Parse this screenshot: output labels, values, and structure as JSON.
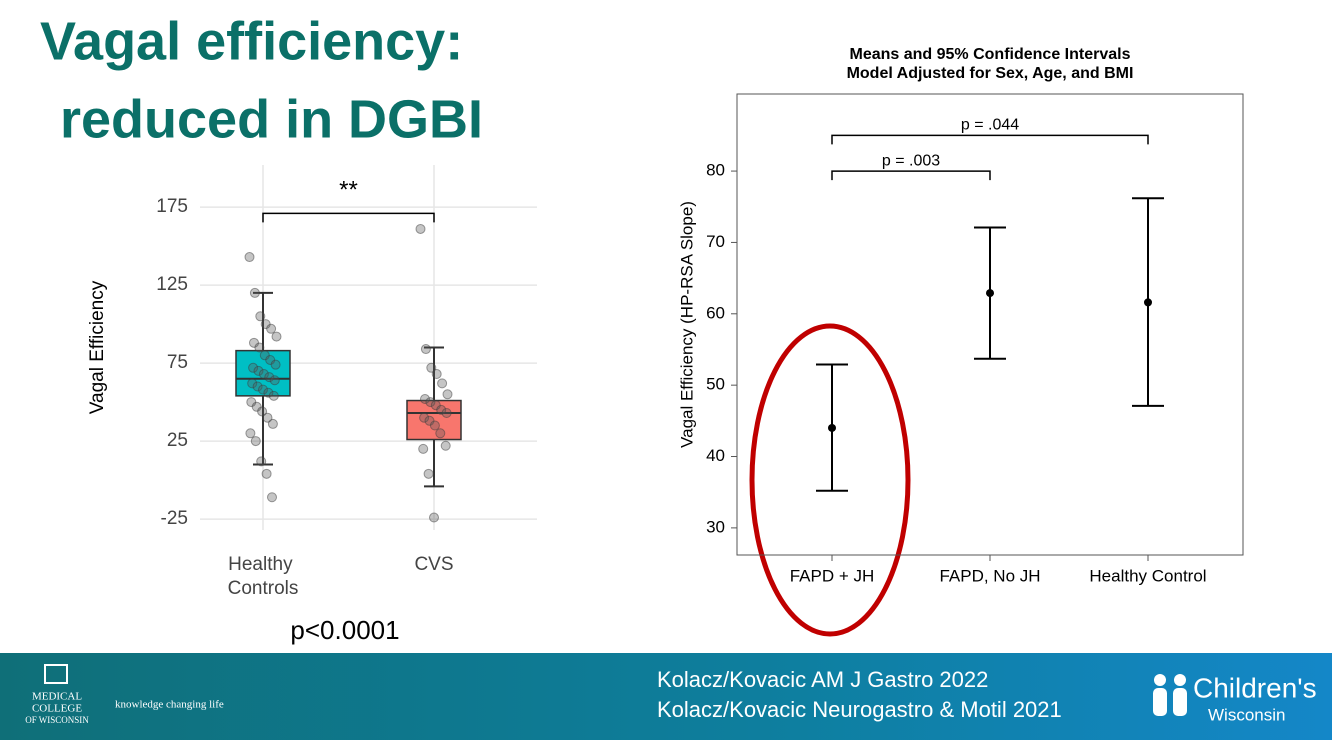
{
  "slide": {
    "title": [
      "Vagal efficiency:",
      "reduced in DGBI"
    ],
    "note": "p<0.0001"
  },
  "chart_data": [
    {
      "type": "box",
      "y_label": "Vagal Efficiency",
      "categories": [
        "Healthy Controls",
        "CVS"
      ],
      "colors": [
        "#00bfc4",
        "#f8766d"
      ],
      "boxes": [
        {
          "whisker_low": 10,
          "q1": 54,
          "median": 65,
          "q3": 83,
          "whisker_high": 120,
          "points": [
            143,
            120,
            105,
            100,
            97,
            92,
            88,
            85,
            80,
            77,
            74,
            72,
            70,
            68,
            66,
            64,
            62,
            60,
            58,
            56,
            54,
            50,
            47,
            44,
            40,
            36,
            30,
            25,
            12,
            4,
            -11
          ]
        },
        {
          "whisker_low": -4,
          "q1": 26,
          "median": 43,
          "q3": 51,
          "whisker_high": 85,
          "points": [
            161,
            84,
            72,
            68,
            62,
            55,
            52,
            50,
            48,
            45,
            43,
            40,
            38,
            35,
            30,
            22,
            20,
            4,
            -24
          ]
        }
      ],
      "ylim": [
        -32,
        202
      ],
      "yticks": [
        -25,
        25,
        75,
        125,
        175
      ],
      "grid": true,
      "brackets": [
        {
          "between": [
            "Healthy Controls",
            "CVS"
          ],
          "y": 171,
          "label": "**"
        }
      ]
    },
    {
      "type": "errorbar",
      "title": [
        "Means and 95% Confidence Intervals",
        "Model Adjusted for Sex, Age, and BMI"
      ],
      "y_label": "Vagal Efficiency (HP-RSA Slope)",
      "categories": [
        "FAPD + JH",
        "FAPD, No JH",
        "Healthy Control"
      ],
      "values": [
        44.0,
        62.9,
        61.6
      ],
      "lower": [
        35.2,
        53.7,
        47.1
      ],
      "upper": [
        52.9,
        72.1,
        76.2
      ],
      "color": "#000000",
      "ylim": [
        26.2,
        90.8
      ],
      "yticks": [
        30,
        40,
        50,
        60,
        70,
        80
      ],
      "grid": false,
      "brackets": [
        {
          "between": [
            "FAPD + JH",
            "FAPD, No JH"
          ],
          "y": 80,
          "label": "p = .003"
        },
        {
          "between": [
            "FAPD + JH",
            "Healthy Control"
          ],
          "y": 85,
          "label": "p = .044"
        }
      ]
    }
  ],
  "footer": {
    "references": [
      "Kolacz/Kovacic AM J Gastro 2022",
      "Kolacz/Kovacic Neurogastro & Motil 2021"
    ],
    "left_logo": [
      "MEDICAL",
      "COLLEGE",
      "OF WISCONSIN"
    ],
    "tagline": "knowledge changing life",
    "right_logo": [
      "Children's",
      "Wisconsin"
    ]
  }
}
